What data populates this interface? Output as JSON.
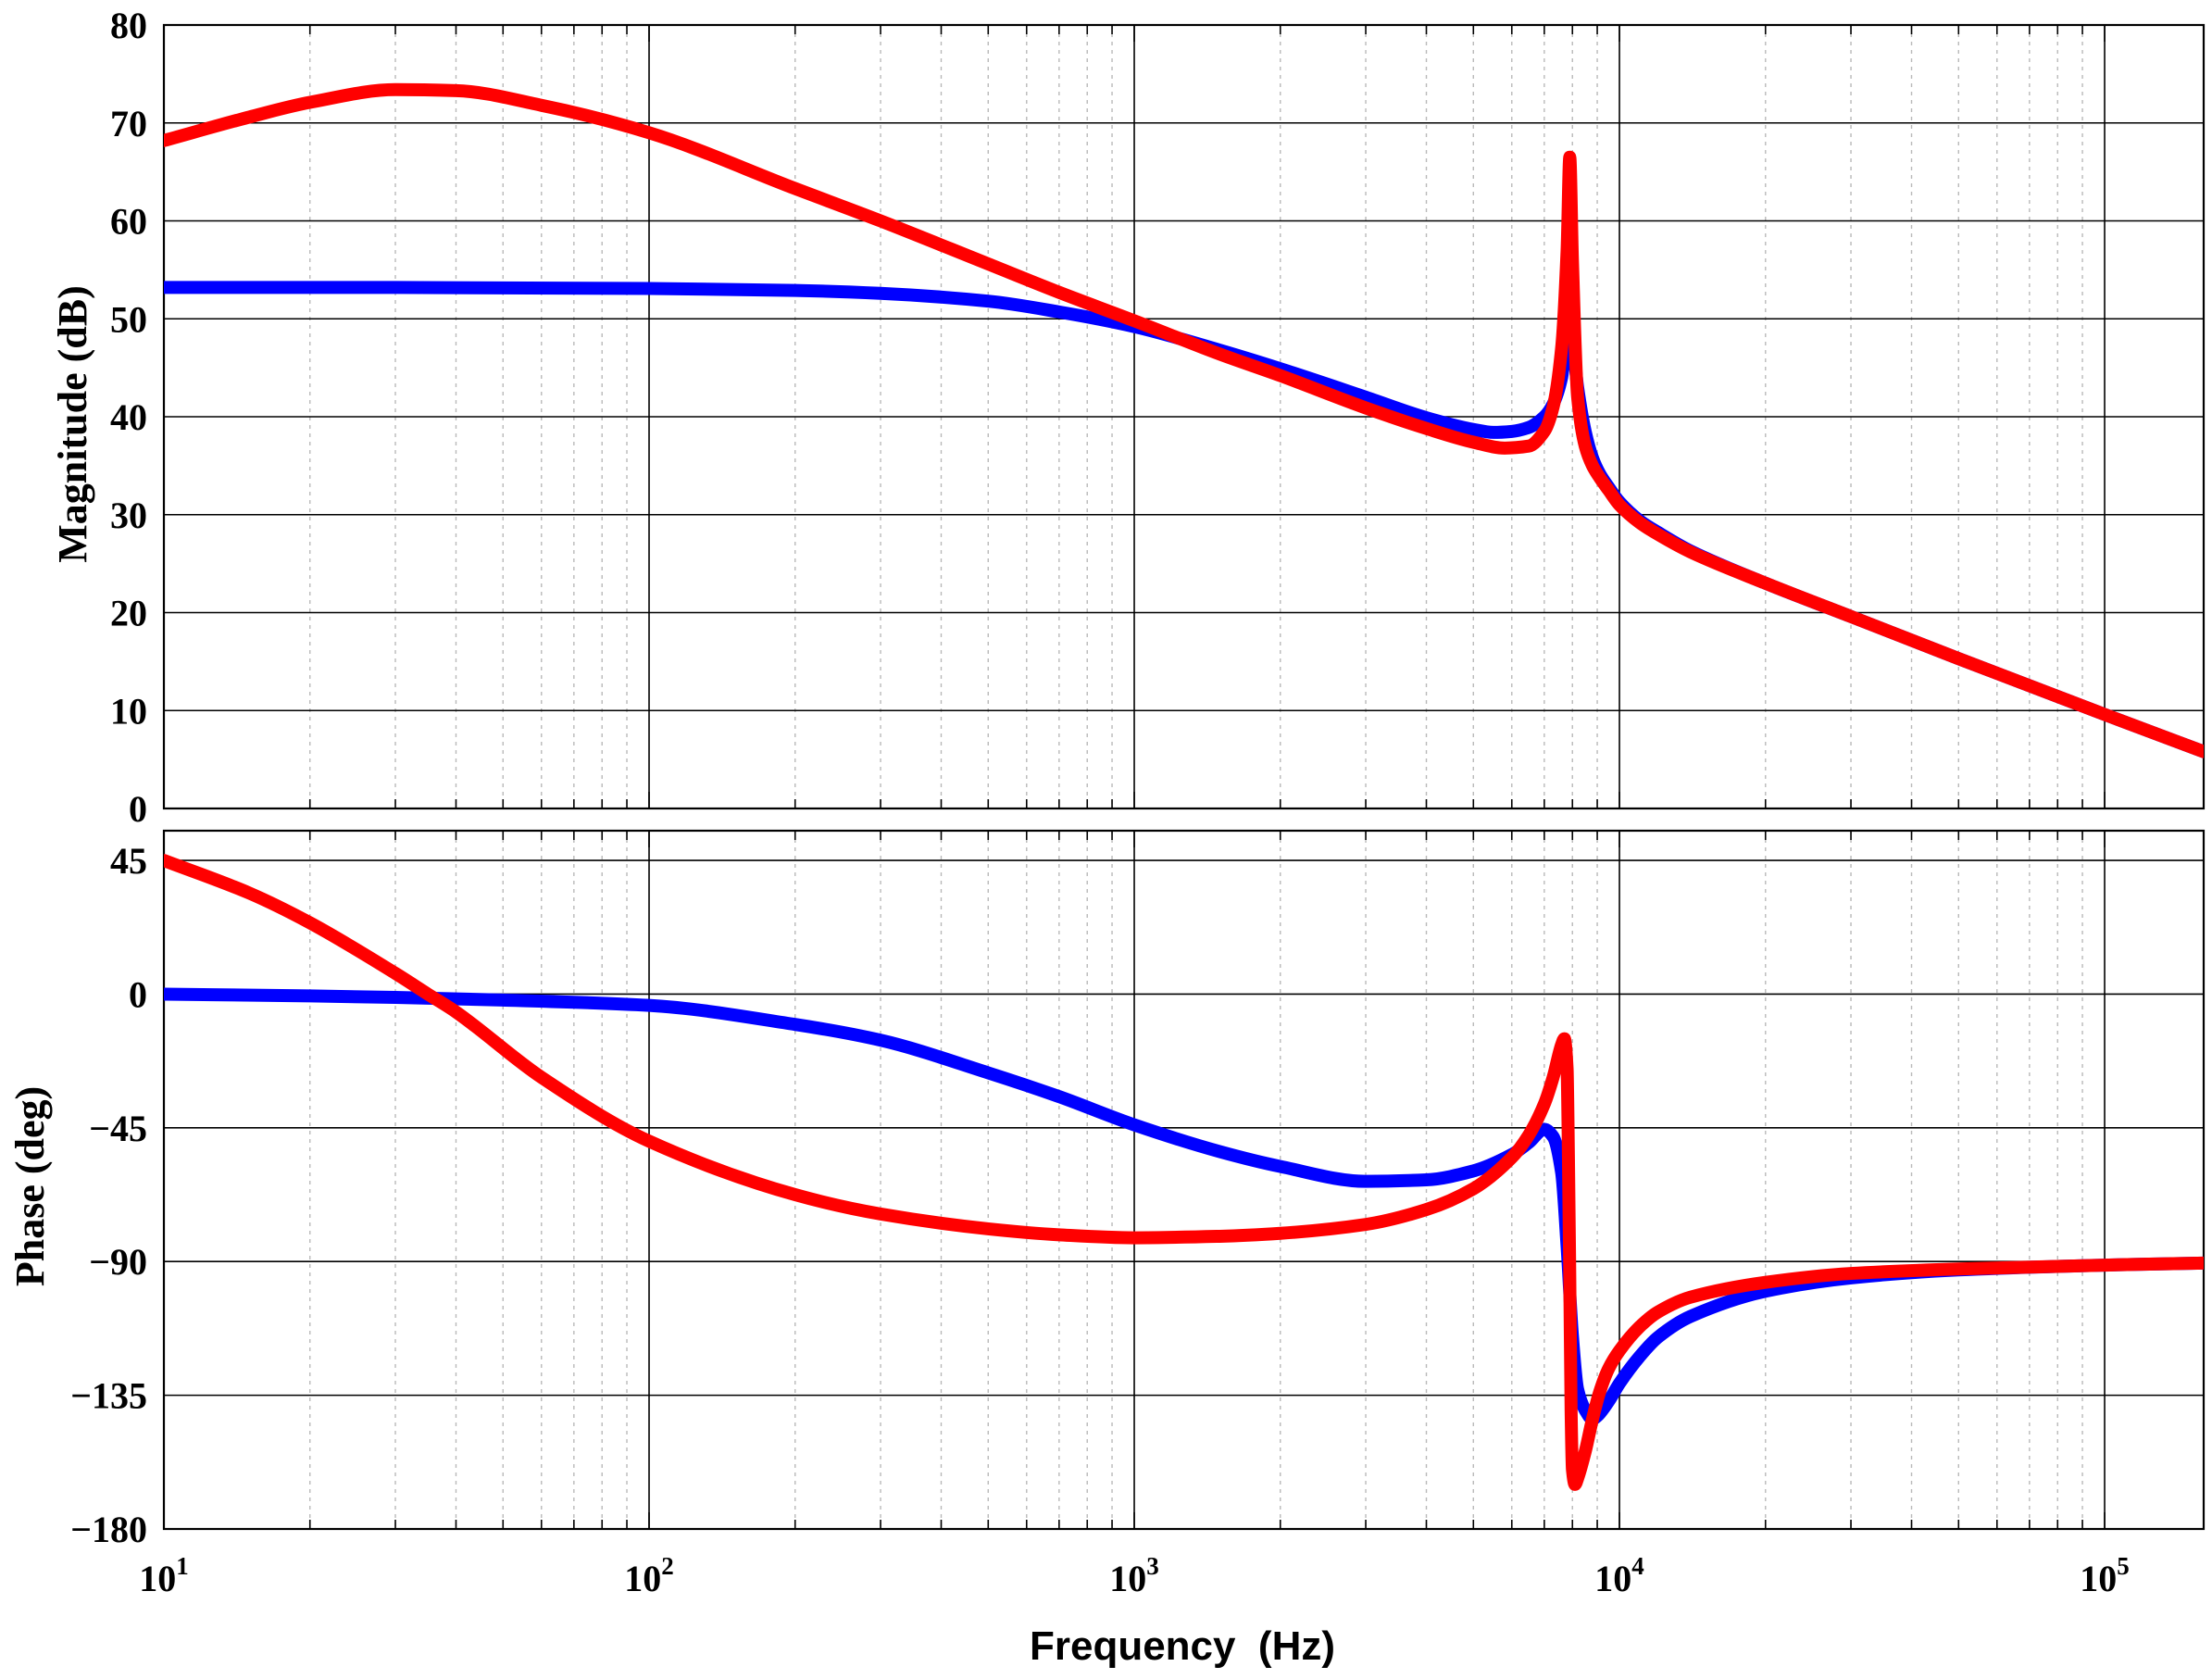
{
  "chart_data": {
    "type": "line",
    "xlabel": "Frequency  (Hz)",
    "x_scale": "log",
    "xlim": [
      10,
      160000
    ],
    "x_ticks": [
      {
        "base": "10",
        "exp": "1",
        "value": 10
      },
      {
        "base": "10",
        "exp": "2",
        "value": 100
      },
      {
        "base": "10",
        "exp": "3",
        "value": 1000
      },
      {
        "base": "10",
        "exp": "4",
        "value": 10000
      },
      {
        "base": "10",
        "exp": "5",
        "value": 100000
      }
    ],
    "grid": true,
    "series_colors": [
      "#0000ff",
      "#ff0000"
    ],
    "panels": [
      {
        "id": "magnitude",
        "ylabel": "Magnitude (dB)",
        "ylim": [
          0,
          80
        ],
        "y_ticks": [
          "0",
          "10",
          "20",
          "30",
          "40",
          "50",
          "60",
          "70",
          "80"
        ],
        "series": [
          {
            "color": "#0000ff",
            "x": [
              10,
              30,
              100,
              200,
              300,
              500,
              700,
              1000,
              1500,
              2000,
              3000,
              4000,
              5000,
              5500,
              6000,
              6500,
              7000,
              7300,
              7600,
              7800,
              8000,
              8200,
              8500,
              8800,
              9100,
              9500,
              10000,
              11000,
              12000,
              14000,
              20000,
              30000,
              50000,
              100000,
              160000
            ],
            "y": [
              53.2,
              53.2,
              53.1,
              52.9,
              52.6,
              51.8,
              50.7,
              49.2,
              46.8,
              44.9,
              42.0,
              39.9,
              38.7,
              38.4,
              38.5,
              38.9,
              40.0,
              41.3,
              44.0,
              48.5,
              47.5,
              43.0,
              38.5,
              35.8,
              34.2,
              32.8,
              31.3,
              29.4,
              28.2,
              26.3,
              23.0,
              19.6,
              15.3,
              9.6,
              5.8
            ]
          },
          {
            "color": "#ff0000",
            "x": [
              10,
              15,
              20,
              30,
              40,
              60,
              100,
              200,
              300,
              500,
              700,
              1000,
              1500,
              2000,
              3000,
              4000,
              5000,
              5800,
              6500,
              7000,
              7300,
              7600,
              7800,
              7900,
              8000,
              8200,
              8500,
              8800,
              9100,
              9500,
              10000,
              11000,
              12000,
              14000,
              20000,
              30000,
              50000,
              100000,
              160000
            ],
            "y": [
              68.2,
              70.6,
              72.1,
              73.4,
              73.3,
              71.8,
              69.0,
              63.3,
              60.0,
              55.6,
              52.7,
              49.8,
              46.4,
              44.2,
              40.9,
              38.8,
              37.4,
              36.8,
              37.0,
              38.5,
              41.0,
              47.0,
              57.0,
              66.5,
              56.0,
              42.0,
              37.0,
              35.0,
              33.8,
              32.5,
              31.0,
              29.2,
              28.0,
              26.2,
              23.0,
              19.6,
              15.3,
              9.6,
              5.8
            ]
          }
        ]
      },
      {
        "id": "phase",
        "ylabel": "Phase (deg)",
        "ylim": [
          -180,
          55
        ],
        "y_ticks": [
          "−180",
          "−135",
          "−90",
          "−45",
          "0",
          "45"
        ],
        "y_tick_values": [
          -180,
          -135,
          -90,
          -45,
          0,
          45
        ],
        "series": [
          {
            "color": "#0000ff",
            "x": [
              10,
              20,
              30,
              50,
              100,
              200,
              300,
              500,
              700,
              1000,
              1500,
              2000,
              3000,
              4000,
              5000,
              6000,
              6500,
              7000,
              7300,
              7600,
              7800,
              8000,
              8200,
              8500,
              8800,
              9000,
              9500,
              10000,
              11000,
              12000,
              14000,
              20000,
              30000,
              50000,
              100000,
              160000
            ],
            "y": [
              0,
              -0.6,
              -1.1,
              -2.0,
              -3.8,
              -10.2,
              -15.5,
              -26.5,
              -34.5,
              -44.0,
              -53.0,
              -58.0,
              -63.0,
              -62.5,
              -59.5,
              -54.0,
              -50.0,
              -45.5,
              -48.0,
              -60.0,
              -85.0,
              -115.0,
              -133.0,
              -140.0,
              -143.0,
              -142.0,
              -137.0,
              -131.0,
              -122.0,
              -115.5,
              -108.5,
              -100.0,
              -95.5,
              -92.8,
              -91.2,
              -90.5
            ]
          },
          {
            "color": "#ff0000",
            "x": [
              10,
              15,
              20,
              30,
              35,
              40,
              60,
              100,
              200,
              300,
              500,
              700,
              1000,
              1500,
              2000,
              3000,
              4000,
              5000,
              6000,
              6500,
              7000,
              7300,
              7600,
              7700,
              7800,
              7850,
              7900,
              7950,
              8000,
              8100,
              8200,
              8500,
              8800,
              9100,
              9500,
              10000,
              11000,
              12000,
              14000,
              20000,
              30000,
              50000,
              100000,
              160000
            ],
            "y": [
              45.0,
              34.0,
              24.0,
              7.0,
              0,
              -6.0,
              -28.0,
              -49.5,
              -67.5,
              -74.0,
              -79.0,
              -81.0,
              -82.0,
              -81.5,
              -80.5,
              -77.5,
              -72.5,
              -65.5,
              -55.0,
              -47.5,
              -37.0,
              -28.0,
              -17.0,
              -15.0,
              -25.0,
              -55.0,
              -95.0,
              -140.0,
              -160.0,
              -165.0,
              -163.0,
              -154.0,
              -143.0,
              -134.0,
              -126.0,
              -120.0,
              -112.0,
              -107.0,
              -102.0,
              -97.0,
              -94.0,
              -92.5,
              -91.2,
              -90.5
            ]
          }
        ]
      }
    ]
  }
}
